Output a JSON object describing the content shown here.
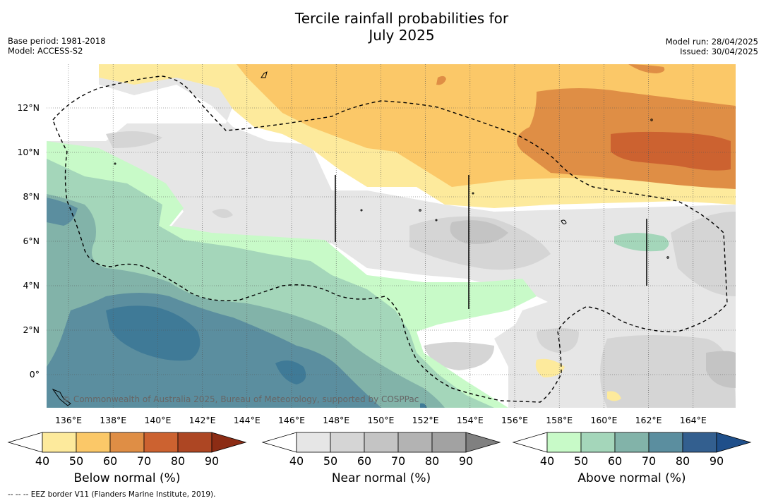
{
  "header": {
    "title_line1": "Tercile rainfall probabilities for",
    "title_line2": "July 2025",
    "base_period": "Base period: 1981-2018",
    "model": "Model: ACCESS-S2",
    "model_run": "Model run: 28/04/2025",
    "issued": "Issued: 30/04/2025"
  },
  "map": {
    "lon_ticks": [
      "136°E",
      "138°E",
      "140°E",
      "142°E",
      "144°E",
      "146°E",
      "148°E",
      "150°E",
      "152°E",
      "154°E",
      "156°E",
      "158°E",
      "160°E",
      "162°E",
      "164°E"
    ],
    "lat_ticks": [
      "12°N",
      "10°N",
      "8°N",
      "6°N",
      "4°N",
      "2°N",
      "0°"
    ],
    "credit": "© Commonwealth of Australia 2025, Bureau of Meteorology, supported by COSPPac"
  },
  "colorbars": [
    {
      "label": "Below normal (%)",
      "ticks": [
        "40",
        "50",
        "60",
        "70",
        "80",
        "90"
      ],
      "colors": [
        "#ffffff",
        "#fdea9c",
        "#fbc868",
        "#df8e45",
        "#cc6230",
        "#ad4623",
        "#8c2c14"
      ]
    },
    {
      "label": "Near normal (%)",
      "ticks": [
        "40",
        "50",
        "60",
        "70",
        "80",
        "90"
      ],
      "colors": [
        "#ffffff",
        "#e6e6e6",
        "#d5d5d5",
        "#c4c4c4",
        "#b3b3b3",
        "#a2a2a2",
        "#808080"
      ]
    },
    {
      "label": "Above normal (%)",
      "ticks": [
        "40",
        "50",
        "60",
        "70",
        "80",
        "90"
      ],
      "colors": [
        "#ffffff",
        "#c8fac8",
        "#a4d6ba",
        "#82b3a9",
        "#5b8e9f",
        "#335f8f",
        "#1f4f8a"
      ]
    }
  ],
  "legend": {
    "eez_marker": "-- -- --",
    "eez_text": "EEZ border V11 (Flanders Marine Institute, 2019)."
  }
}
